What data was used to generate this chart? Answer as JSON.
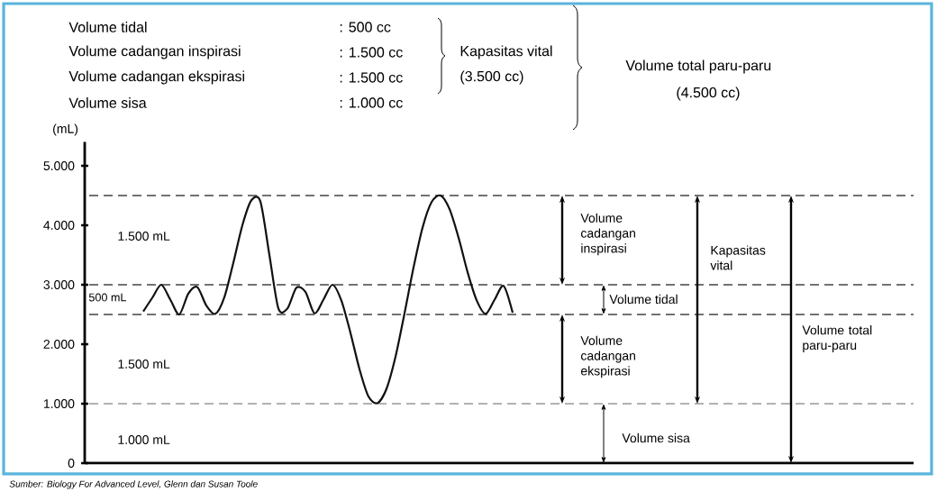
{
  "chart_data": {
    "type": "line",
    "ylabel": "(mL)",
    "categories": [
      null,
      null,
      null,
      null,
      null,
      null,
      null,
      null,
      null,
      null,
      null,
      null,
      null,
      null,
      null,
      null,
      null,
      null,
      null,
      null,
      null,
      null,
      null,
      null,
      null,
      null,
      null,
      null,
      null,
      null,
      null,
      null,
      null,
      null,
      null,
      null,
      null,
      null,
      null,
      null,
      null,
      null,
      null,
      null,
      null,
      null,
      null,
      null,
      null,
      null,
      null,
      null,
      null,
      null,
      null,
      null,
      null,
      null,
      null,
      null,
      null,
      null,
      null,
      null,
      null,
      null,
      null,
      null,
      null,
      null,
      null,
      null,
      null,
      null,
      null,
      null,
      null,
      null,
      null,
      null,
      null,
      null,
      null,
      null,
      null,
      null,
      null,
      null,
      null,
      null,
      null,
      null
    ],
    "values": [
      null,
      null,
      null,
      null,
      null,
      null,
      2550,
      2780,
      3000,
      2750,
      2500,
      2850,
      2960,
      2650,
      2510,
      2790,
      3370,
      4000,
      4420,
      4400,
      3500,
      2600,
      2600,
      2950,
      2880,
      2520,
      2750,
      3000,
      2730,
      2190,
      1580,
      1120,
      1010,
      1250,
      1790,
      2520,
      3290,
      3960,
      4390,
      4500,
      4270,
      3790,
      3210,
      2740,
      2510,
      2750,
      2980,
      2530,
      null,
      null,
      null,
      null,
      null,
      null,
      null,
      null,
      null,
      null,
      null,
      null,
      null,
      null,
      null,
      null,
      null,
      null,
      null,
      null,
      null,
      null,
      null,
      null,
      null,
      null,
      null,
      null,
      null,
      null,
      null,
      null,
      null,
      null,
      null,
      null,
      null,
      null,
      null,
      null,
      null,
      null,
      null,
      null
    ],
    "color": "#111111",
    "ylim": [
      0,
      5400
    ],
    "yticks": [
      {
        "value": 0,
        "label": "0"
      },
      {
        "value": 1000,
        "label": "1.000"
      },
      {
        "value": 2000,
        "label": "2.000"
      },
      {
        "value": 3000,
        "label": "3.000"
      },
      {
        "value": 4000,
        "label": "4.000"
      },
      {
        "value": 5000,
        "label": "5.000"
      }
    ],
    "tick_labels": "y",
    "ref_lines": [
      {
        "axis": "y",
        "value": 4500,
        "color": "#444444",
        "line_style": "dashed"
      },
      {
        "axis": "y",
        "value": 3000,
        "color": "#444444",
        "line_style": "dashed"
      },
      {
        "axis": "y",
        "value": 2500,
        "color": "#444444",
        "line_style": "dashed"
      },
      {
        "axis": "y",
        "value": 1000,
        "color": "#999999",
        "line_style": "dashed"
      }
    ],
    "annotations": [
      "Volume tidal",
      ": 500 cc",
      "Volume cadangan inspirasi",
      ": 1.500 cc",
      "Volume cadangan ekspirasi",
      ": 1.500 cc",
      "Volume sisa",
      ": 1.000 cc",
      "Kapasitas vital",
      "(3.500 cc)",
      "Volume total paru-paru",
      "(4.500 cc)",
      "1.500 mL",
      "500 mL",
      "1.500 mL",
      "1.000 mL",
      "Volume cadangan inspirasi",
      "Volume tidal",
      "Volume cadangan ekspirasi",
      "Kapasitas vital",
      "Volume total paru-paru",
      "Volume sisa",
      "Sumber: Biology For Advanced Level, Glenn dan Susan Toole"
    ]
  }
}
